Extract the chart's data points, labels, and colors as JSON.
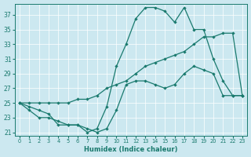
{
  "xlabel": "Humidex (Indice chaleur)",
  "ylabel": "",
  "bg_color": "#cce8f0",
  "line_color": "#1a7a6e",
  "xlim": [
    -0.5,
    23.5
  ],
  "ylim": [
    20.5,
    38.5
  ],
  "yticks": [
    21,
    23,
    25,
    27,
    29,
    31,
    33,
    35,
    37
  ],
  "xticks": [
    0,
    1,
    2,
    3,
    4,
    5,
    6,
    7,
    8,
    9,
    10,
    11,
    12,
    13,
    14,
    15,
    16,
    17,
    18,
    19,
    20,
    21,
    22,
    23
  ],
  "max_line": [
    25,
    24,
    23,
    23,
    22.5,
    22,
    22,
    21,
    21.5,
    24.5,
    30,
    33,
    36.5,
    38,
    38,
    37.5,
    36,
    38,
    35,
    35,
    31,
    28,
    26,
    26
  ],
  "mean_line": [
    25,
    25,
    25,
    25,
    25,
    25,
    25.5,
    25.5,
    26,
    27,
    27.5,
    28,
    29,
    30,
    30.5,
    31,
    31.5,
    32,
    33,
    34,
    34,
    34.5,
    34.5,
    26
  ],
  "min_line": [
    25,
    24.5,
    24,
    23.5,
    22,
    22,
    22,
    21.5,
    21,
    21.5,
    24,
    27.5,
    28,
    28,
    27.5,
    27,
    27.5,
    29,
    30,
    29.5,
    29,
    26,
    26,
    26
  ]
}
